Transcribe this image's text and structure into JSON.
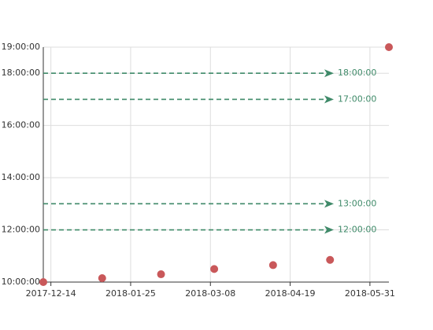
{
  "chart_data": {
    "type": "scatter",
    "x": [
      "2017-12-10",
      "2018-01-10",
      "2018-02-10",
      "2018-03-10",
      "2018-04-10",
      "2018-05-10",
      "2018-06-10"
    ],
    "values": [
      10,
      10.15,
      10.3,
      10.5,
      10.65,
      10.85,
      19
    ],
    "color": "#c9585a",
    "xlim": [
      "2017-12-10",
      "2018-06-10"
    ],
    "xticks": [
      "2017-12-14",
      "2018-01-25",
      "2018-03-08",
      "2018-04-19",
      "2018-05-31"
    ],
    "ylim": [
      10,
      19
    ],
    "yticks": [
      {
        "value": 10,
        "label": "10:00:00"
      },
      {
        "value": 12,
        "label": "12:00:00"
      },
      {
        "value": 14,
        "label": "14:00:00"
      },
      {
        "value": 16,
        "label": "16:00:00"
      },
      {
        "value": 18,
        "label": "18:00:00"
      },
      {
        "value": 19,
        "label": "19:00:00"
      }
    ],
    "grid": true,
    "mark_lines": {
      "values": [
        12,
        13,
        17,
        18
      ],
      "value_labels": [
        "12:00:00",
        "13:00:00",
        "17:00:00",
        "18:00:00"
      ],
      "color": "#3f8a69"
    }
  }
}
